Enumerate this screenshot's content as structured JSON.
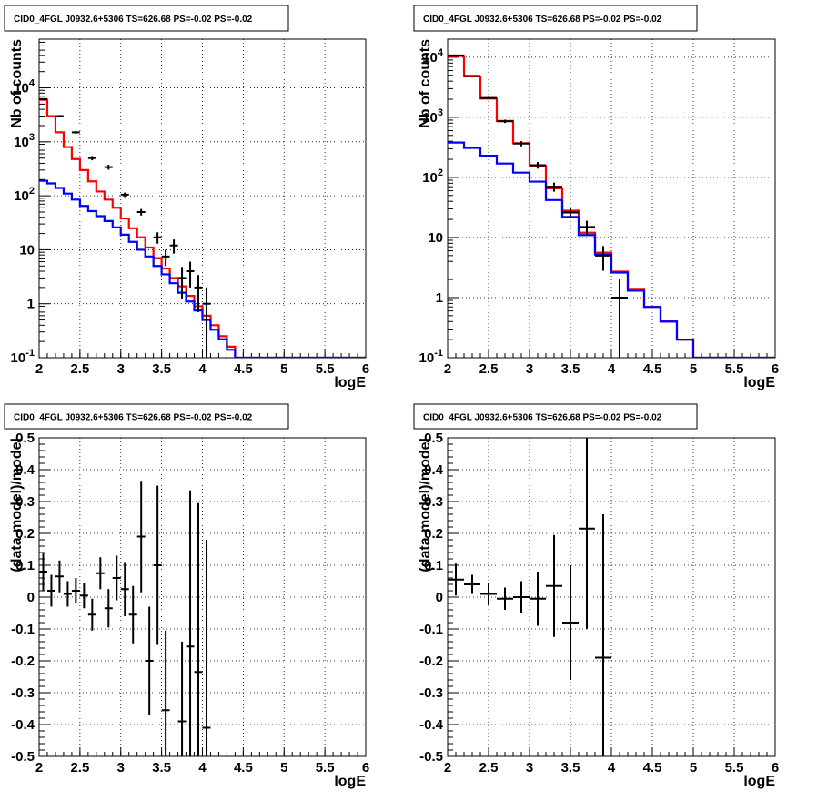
{
  "chart_data": [
    {
      "type": "step-line",
      "title": "CID0_4FGL J0932.6+5306 TS=626.68 PS=-0.02 PS=-0.02",
      "xlabel": "logE",
      "ylabel": "Nb of counts",
      "xlim": [
        2,
        6
      ],
      "ylim": [
        0.1,
        80000
      ],
      "yscale": "log",
      "grid": true,
      "x_ticks": [
        "2",
        "2.5",
        "3",
        "3.5",
        "4",
        "4.5",
        "5",
        "5.5",
        "6"
      ],
      "y_ticks": [
        {
          "v": 0.1,
          "label": "10^-1"
        },
        {
          "v": 1,
          "label": "1"
        },
        {
          "v": 10,
          "label": "10"
        },
        {
          "v": 100,
          "label": "10^2"
        },
        {
          "v": 1000,
          "label": "10^3"
        },
        {
          "v": 10000,
          "label": "10^4"
        }
      ],
      "edges": [
        2.0,
        2.1,
        2.2,
        2.3,
        2.4,
        2.5,
        2.6,
        2.7,
        2.8,
        2.9,
        3.0,
        3.1,
        3.2,
        3.3,
        3.4,
        3.5,
        3.6,
        3.7,
        3.8,
        3.9,
        4.0,
        4.1,
        4.2,
        4.3,
        4.4,
        4.5,
        4.6,
        4.7,
        4.8,
        4.9,
        5.0,
        5.1,
        5.2,
        5.3,
        5.4,
        5.5,
        5.6,
        5.7,
        5.8,
        5.9,
        6.0
      ],
      "series": [
        {
          "color": "#ff0000",
          "values": [
            6000,
            3000,
            1500,
            800,
            480,
            300,
            185,
            120,
            85,
            60,
            38,
            25,
            17,
            11,
            7,
            4.5,
            3.0,
            2.1,
            1.4,
            0.9,
            0.6,
            0.4,
            0.25,
            0.16,
            0.1,
            0.1,
            0.1,
            0.1,
            0.1,
            0.1,
            0.1,
            0.1,
            0.1,
            0.1,
            0.1,
            0.1,
            0.1,
            0.1,
            0.1,
            0.1
          ]
        },
        {
          "color": "#0000ff",
          "values": [
            190,
            170,
            140,
            110,
            85,
            65,
            52,
            42,
            34,
            26,
            19,
            14,
            10,
            7.5,
            5,
            3.5,
            2.4,
            1.6,
            1.1,
            0.75,
            0.5,
            0.33,
            0.22,
            0.14,
            0.1,
            0.1,
            0.1,
            0.1,
            0.1,
            0.1,
            0.1,
            0.1,
            0.1,
            0.1,
            0.1,
            0.1,
            0.1,
            0.1,
            0.1,
            0.1
          ]
        }
      ],
      "data_points": [
        {
          "x": 2.05,
          "y": 6200,
          "ylo": 6000,
          "yhi": 6400
        },
        {
          "x": 2.25,
          "y": 3000,
          "ylo": 2850,
          "yhi": 3150
        },
        {
          "x": 2.45,
          "y": 1500,
          "ylo": 1420,
          "yhi": 1580
        },
        {
          "x": 2.65,
          "y": 500,
          "ylo": 455,
          "yhi": 545
        },
        {
          "x": 2.85,
          "y": 340,
          "ylo": 305,
          "yhi": 375
        },
        {
          "x": 3.05,
          "y": 105,
          "ylo": 95,
          "yhi": 115
        },
        {
          "x": 3.25,
          "y": 50,
          "ylo": 43,
          "yhi": 57
        },
        {
          "x": 3.45,
          "y": 17,
          "ylo": 13,
          "yhi": 21
        },
        {
          "x": 3.55,
          "y": 7.5,
          "ylo": 5,
          "yhi": 10
        },
        {
          "x": 3.65,
          "y": 12,
          "ylo": 8.5,
          "yhi": 15.5
        },
        {
          "x": 3.75,
          "y": 3.0,
          "ylo": 1.2,
          "yhi": 4.8
        },
        {
          "x": 3.85,
          "y": 4.0,
          "ylo": 2.0,
          "yhi": 6.0
        },
        {
          "x": 3.95,
          "y": 2.0,
          "ylo": 0.7,
          "yhi": 3.4
        },
        {
          "x": 4.05,
          "y": 1.0,
          "ylo": 0.1,
          "yhi": 2.0
        }
      ]
    },
    {
      "type": "step-line",
      "title": "CID0_4FGL J0932.6+5306 TS=626.68 PS=-0.02 PS=-0.02",
      "xlabel": "logE",
      "ylabel": "Nb of counts",
      "xlim": [
        2,
        6
      ],
      "ylim": [
        0.1,
        20000
      ],
      "yscale": "log",
      "grid": true,
      "x_ticks": [
        "2",
        "2.5",
        "3",
        "3.5",
        "4",
        "4.5",
        "5",
        "5.5",
        "6"
      ],
      "y_ticks": [
        {
          "v": 0.1,
          "label": "10^-1"
        },
        {
          "v": 1,
          "label": "1"
        },
        {
          "v": 10,
          "label": "10"
        },
        {
          "v": 100,
          "label": "10^2"
        },
        {
          "v": 1000,
          "label": "10^3"
        },
        {
          "v": 10000,
          "label": "10^4"
        }
      ],
      "edges": [
        2.0,
        2.2,
        2.4,
        2.6,
        2.8,
        3.0,
        3.2,
        3.4,
        3.6,
        3.8,
        4.0,
        4.2,
        4.4,
        4.6,
        4.8,
        5.0,
        5.2,
        5.4,
        5.6,
        5.8,
        6.0
      ],
      "series": [
        {
          "color": "#ff0000",
          "values": [
            10500,
            4800,
            2050,
            870,
            370,
            155,
            66,
            28,
            12,
            5.6,
            2.7,
            1.4,
            0.7,
            0.4,
            0.2,
            0.1,
            0.1,
            0.1,
            0.1,
            0.1
          ]
        },
        {
          "color": "#0000ff",
          "values": [
            380,
            310,
            230,
            170,
            120,
            85,
            42,
            22,
            11,
            5.2,
            2.6,
            1.3,
            0.7,
            0.4,
            0.2,
            0.1,
            0.1,
            0.1,
            0.1,
            0.1
          ]
        }
      ],
      "data_points": [
        {
          "x": 2.1,
          "y": 10700,
          "ylo": 10500,
          "yhi": 10900
        },
        {
          "x": 2.3,
          "y": 4900,
          "ylo": 4760,
          "yhi": 5040
        },
        {
          "x": 2.5,
          "y": 2100,
          "ylo": 2010,
          "yhi": 2190
        },
        {
          "x": 2.7,
          "y": 860,
          "ylo": 805,
          "yhi": 915
        },
        {
          "x": 2.9,
          "y": 365,
          "ylo": 330,
          "yhi": 400
        },
        {
          "x": 3.1,
          "y": 160,
          "ylo": 140,
          "yhi": 180
        },
        {
          "x": 3.3,
          "y": 70,
          "ylo": 58,
          "yhi": 82
        },
        {
          "x": 3.5,
          "y": 26,
          "ylo": 21,
          "yhi": 31
        },
        {
          "x": 3.7,
          "y": 15,
          "ylo": 11,
          "yhi": 19
        },
        {
          "x": 3.9,
          "y": 5,
          "ylo": 2.8,
          "yhi": 7.2
        },
        {
          "x": 4.1,
          "y": 1.0,
          "ylo": 0.1,
          "yhi": 2.0
        }
      ]
    },
    {
      "type": "scatter",
      "title": "CID0_4FGL J0932.6+5306 TS=626.68 PS=-0.02 PS=-0.02",
      "xlabel": "logE",
      "ylabel": "(data-model)/model",
      "xlim": [
        2,
        6
      ],
      "ylim": [
        -0.5,
        0.5
      ],
      "grid": true,
      "x_ticks": [
        "2",
        "2.5",
        "3",
        "3.5",
        "4",
        "4.5",
        "5",
        "5.5",
        "6"
      ],
      "y_ticks": [
        "-0.5",
        "-0.4",
        "-0.3",
        "-0.2",
        "-0.1",
        "0",
        "0.1",
        "0.2",
        "0.3",
        "0.4",
        "0.5"
      ],
      "x_halfwidth": 0.05,
      "points": [
        {
          "x": 2.05,
          "y": 0.08,
          "err": 0.06
        },
        {
          "x": 2.15,
          "y": 0.02,
          "err": 0.05
        },
        {
          "x": 2.25,
          "y": 0.065,
          "err": 0.05
        },
        {
          "x": 2.35,
          "y": 0.01,
          "err": 0.04
        },
        {
          "x": 2.45,
          "y": 0.02,
          "err": 0.04
        },
        {
          "x": 2.55,
          "y": 0.005,
          "err": 0.04
        },
        {
          "x": 2.65,
          "y": -0.055,
          "err": 0.05
        },
        {
          "x": 2.75,
          "y": 0.075,
          "err": 0.05
        },
        {
          "x": 2.85,
          "y": -0.035,
          "err": 0.06
        },
        {
          "x": 2.95,
          "y": 0.06,
          "err": 0.07
        },
        {
          "x": 3.05,
          "y": 0.025,
          "err": 0.085
        },
        {
          "x": 3.15,
          "y": -0.055,
          "err": 0.09
        },
        {
          "x": 3.25,
          "y": 0.19,
          "err": 0.175
        },
        {
          "x": 3.35,
          "y": -0.2,
          "err": 0.17
        },
        {
          "x": 3.45,
          "y": 0.1,
          "err": 0.25
        },
        {
          "x": 3.55,
          "y": -0.355,
          "err": 0.25
        },
        {
          "x": 3.75,
          "y": -0.39,
          "err": 0.25
        },
        {
          "x": 3.85,
          "y": -0.155,
          "err": 0.49
        },
        {
          "x": 3.95,
          "y": -0.235,
          "err": 0.53
        },
        {
          "x": 4.05,
          "y": -0.41,
          "err": 0.59
        }
      ]
    },
    {
      "type": "scatter",
      "title": "CID0_4FGL J0932.6+5306 TS=626.68 PS=-0.02 PS=-0.02",
      "xlabel": "logE",
      "ylabel": "(data-model)/model",
      "xlim": [
        2,
        6
      ],
      "ylim": [
        -0.5,
        0.5
      ],
      "grid": true,
      "x_ticks": [
        "2",
        "2.5",
        "3",
        "3.5",
        "4",
        "4.5",
        "5",
        "5.5",
        "6"
      ],
      "y_ticks": [
        "-0.5",
        "-0.4",
        "-0.3",
        "-0.2",
        "-0.1",
        "0",
        "0.1",
        "0.2",
        "0.3",
        "0.4",
        "0.5"
      ],
      "x_halfwidth": 0.1,
      "points": [
        {
          "x": 2.1,
          "y": 0.055,
          "err": 0.05
        },
        {
          "x": 2.3,
          "y": 0.04,
          "err": 0.03
        },
        {
          "x": 2.5,
          "y": 0.01,
          "err": 0.035
        },
        {
          "x": 2.7,
          "y": -0.005,
          "err": 0.035
        },
        {
          "x": 2.9,
          "y": 0.0,
          "err": 0.05
        },
        {
          "x": 3.1,
          "y": -0.005,
          "err": 0.085
        },
        {
          "x": 3.3,
          "y": 0.035,
          "err": 0.16
        },
        {
          "x": 3.5,
          "y": -0.08,
          "err": 0.18
        },
        {
          "x": 3.7,
          "y": 0.215,
          "err": 0.315
        },
        {
          "x": 3.9,
          "y": -0.19,
          "err": 0.45
        }
      ]
    }
  ]
}
